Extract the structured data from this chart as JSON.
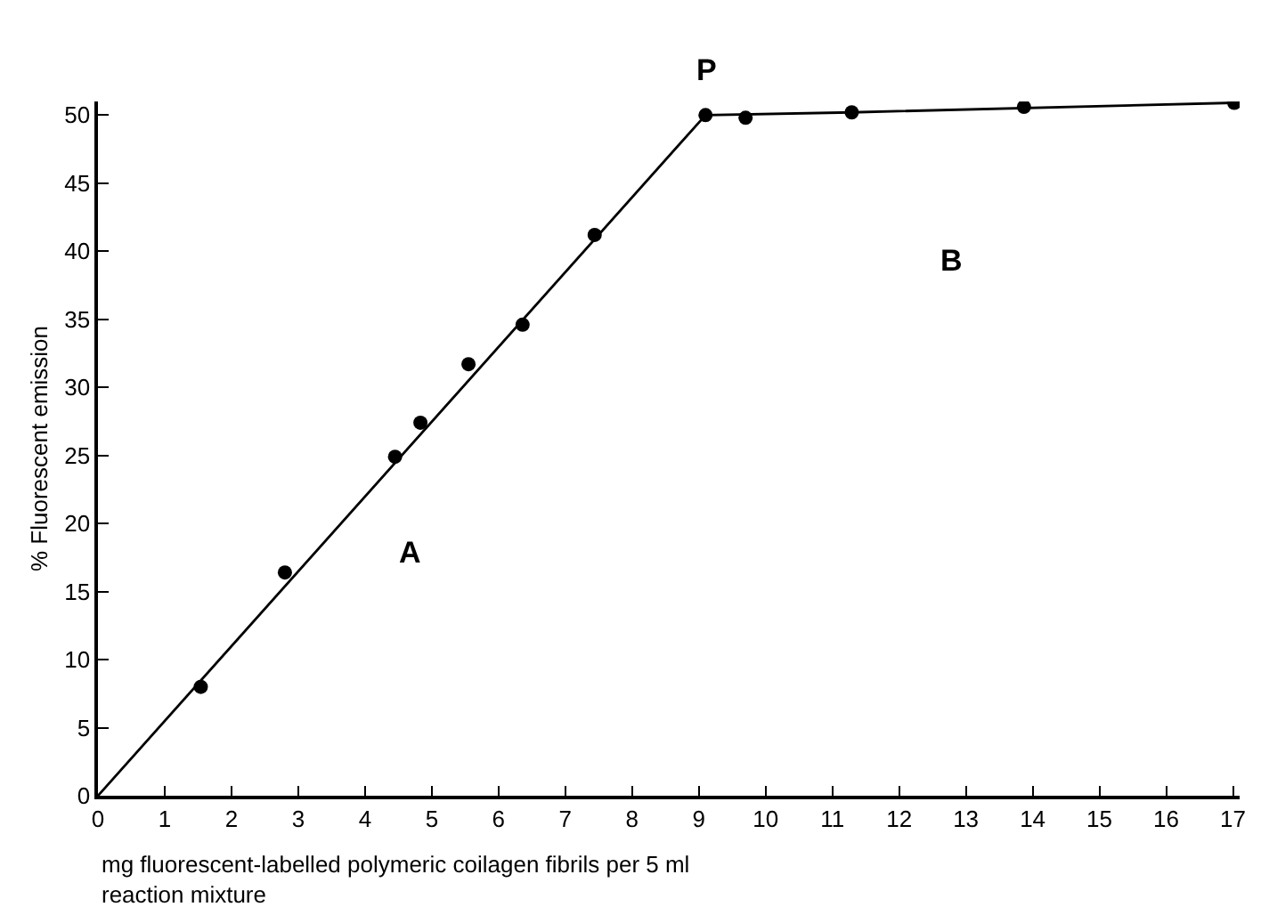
{
  "chart_data": {
    "type": "scatter",
    "xlabel": "mg fluorescent-labelled polymeric coilagen fibrils per 5 ml\nreaction mixture",
    "ylabel": "% Fluorescent emission",
    "series": [
      {
        "color": "#000000",
        "marker": "circle",
        "x": [
          1.54,
          2.8,
          4.45,
          4.83,
          5.55,
          6.36,
          7.44,
          9.1,
          9.7,
          11.29,
          13.87,
          17.02
        ],
        "values": [
          8.0,
          16.4,
          24.9,
          27.4,
          31.7,
          34.6,
          41.2,
          50.0,
          49.8,
          50.2,
          50.6,
          50.9
        ]
      },
      {
        "type": "line",
        "color": "#000000",
        "line_style": "solid",
        "x": [
          0,
          9.1,
          11.29,
          17.02
        ],
        "values": [
          0,
          50.0,
          50.2,
          50.9
        ]
      }
    ],
    "annotations": [
      {
        "text": "P",
        "x": 9.1,
        "y": 50.0
      },
      "A",
      "B"
    ],
    "xlim": [
      0,
      17.1
    ],
    "xticks": [
      0,
      1,
      2,
      3,
      4,
      5,
      6,
      7,
      8,
      9,
      10,
      11,
      12,
      13,
      14,
      15,
      16,
      17
    ],
    "ylim": [
      0,
      51
    ],
    "yticks": [
      0,
      5,
      10,
      15,
      20,
      25,
      30,
      35,
      40,
      45,
      50
    ]
  }
}
